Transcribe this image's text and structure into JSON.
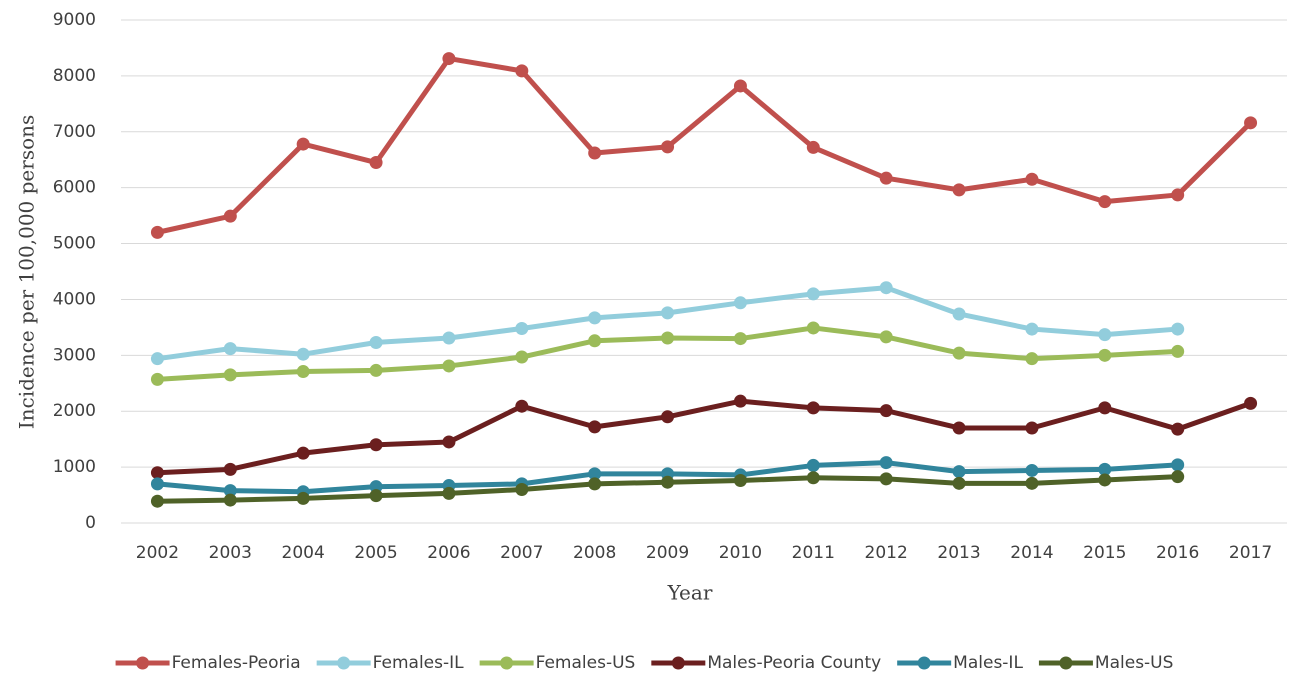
{
  "chart_data": {
    "type": "line",
    "xlabel": "Year",
    "ylabel": "Incidence per 100,000 persons",
    "categories": [
      "2002",
      "2003",
      "2004",
      "2005",
      "2006",
      "2007",
      "2008",
      "2009",
      "2010",
      "2011",
      "2012",
      "2013",
      "2014",
      "2015",
      "2016",
      "2017"
    ],
    "series": [
      {
        "name": "Females-Peoria",
        "color": "#c0504d",
        "values": [
          5200,
          5490,
          6780,
          6450,
          8310,
          8090,
          6620,
          6730,
          7820,
          6720,
          6170,
          5960,
          6150,
          5750,
          5870,
          7160
        ]
      },
      {
        "name": "Females-IL",
        "color": "#92cddc",
        "values": [
          2940,
          3120,
          3020,
          3230,
          3310,
          3480,
          3670,
          3760,
          3940,
          4100,
          4210,
          3740,
          3470,
          3370,
          3470,
          null
        ]
      },
      {
        "name": "Females-US",
        "color": "#9bbb59",
        "values": [
          2570,
          2650,
          2710,
          2730,
          2810,
          2970,
          3260,
          3310,
          3300,
          3490,
          3330,
          3040,
          2940,
          3000,
          3070,
          null
        ]
      },
      {
        "name": "Males-Peoria County",
        "color": "#6b1f1f",
        "values": [
          900,
          960,
          1250,
          1400,
          1450,
          2090,
          1720,
          1900,
          2180,
          2060,
          2010,
          1700,
          1700,
          2060,
          1680,
          2140
        ]
      },
      {
        "name": "Males-IL",
        "color": "#31859c",
        "values": [
          700,
          580,
          560,
          650,
          670,
          700,
          880,
          880,
          860,
          1030,
          1080,
          920,
          940,
          960,
          1040,
          null
        ]
      },
      {
        "name": "Males-US",
        "color": "#4f6228",
        "values": [
          390,
          410,
          440,
          490,
          530,
          600,
          700,
          730,
          760,
          810,
          790,
          710,
          710,
          770,
          830,
          null
        ]
      }
    ],
    "ylim": [
      0,
      9000
    ],
    "yticks": [
      0,
      1000,
      2000,
      3000,
      4000,
      5000,
      6000,
      7000,
      8000,
      9000
    ],
    "grid": true,
    "legend": "bottom"
  }
}
